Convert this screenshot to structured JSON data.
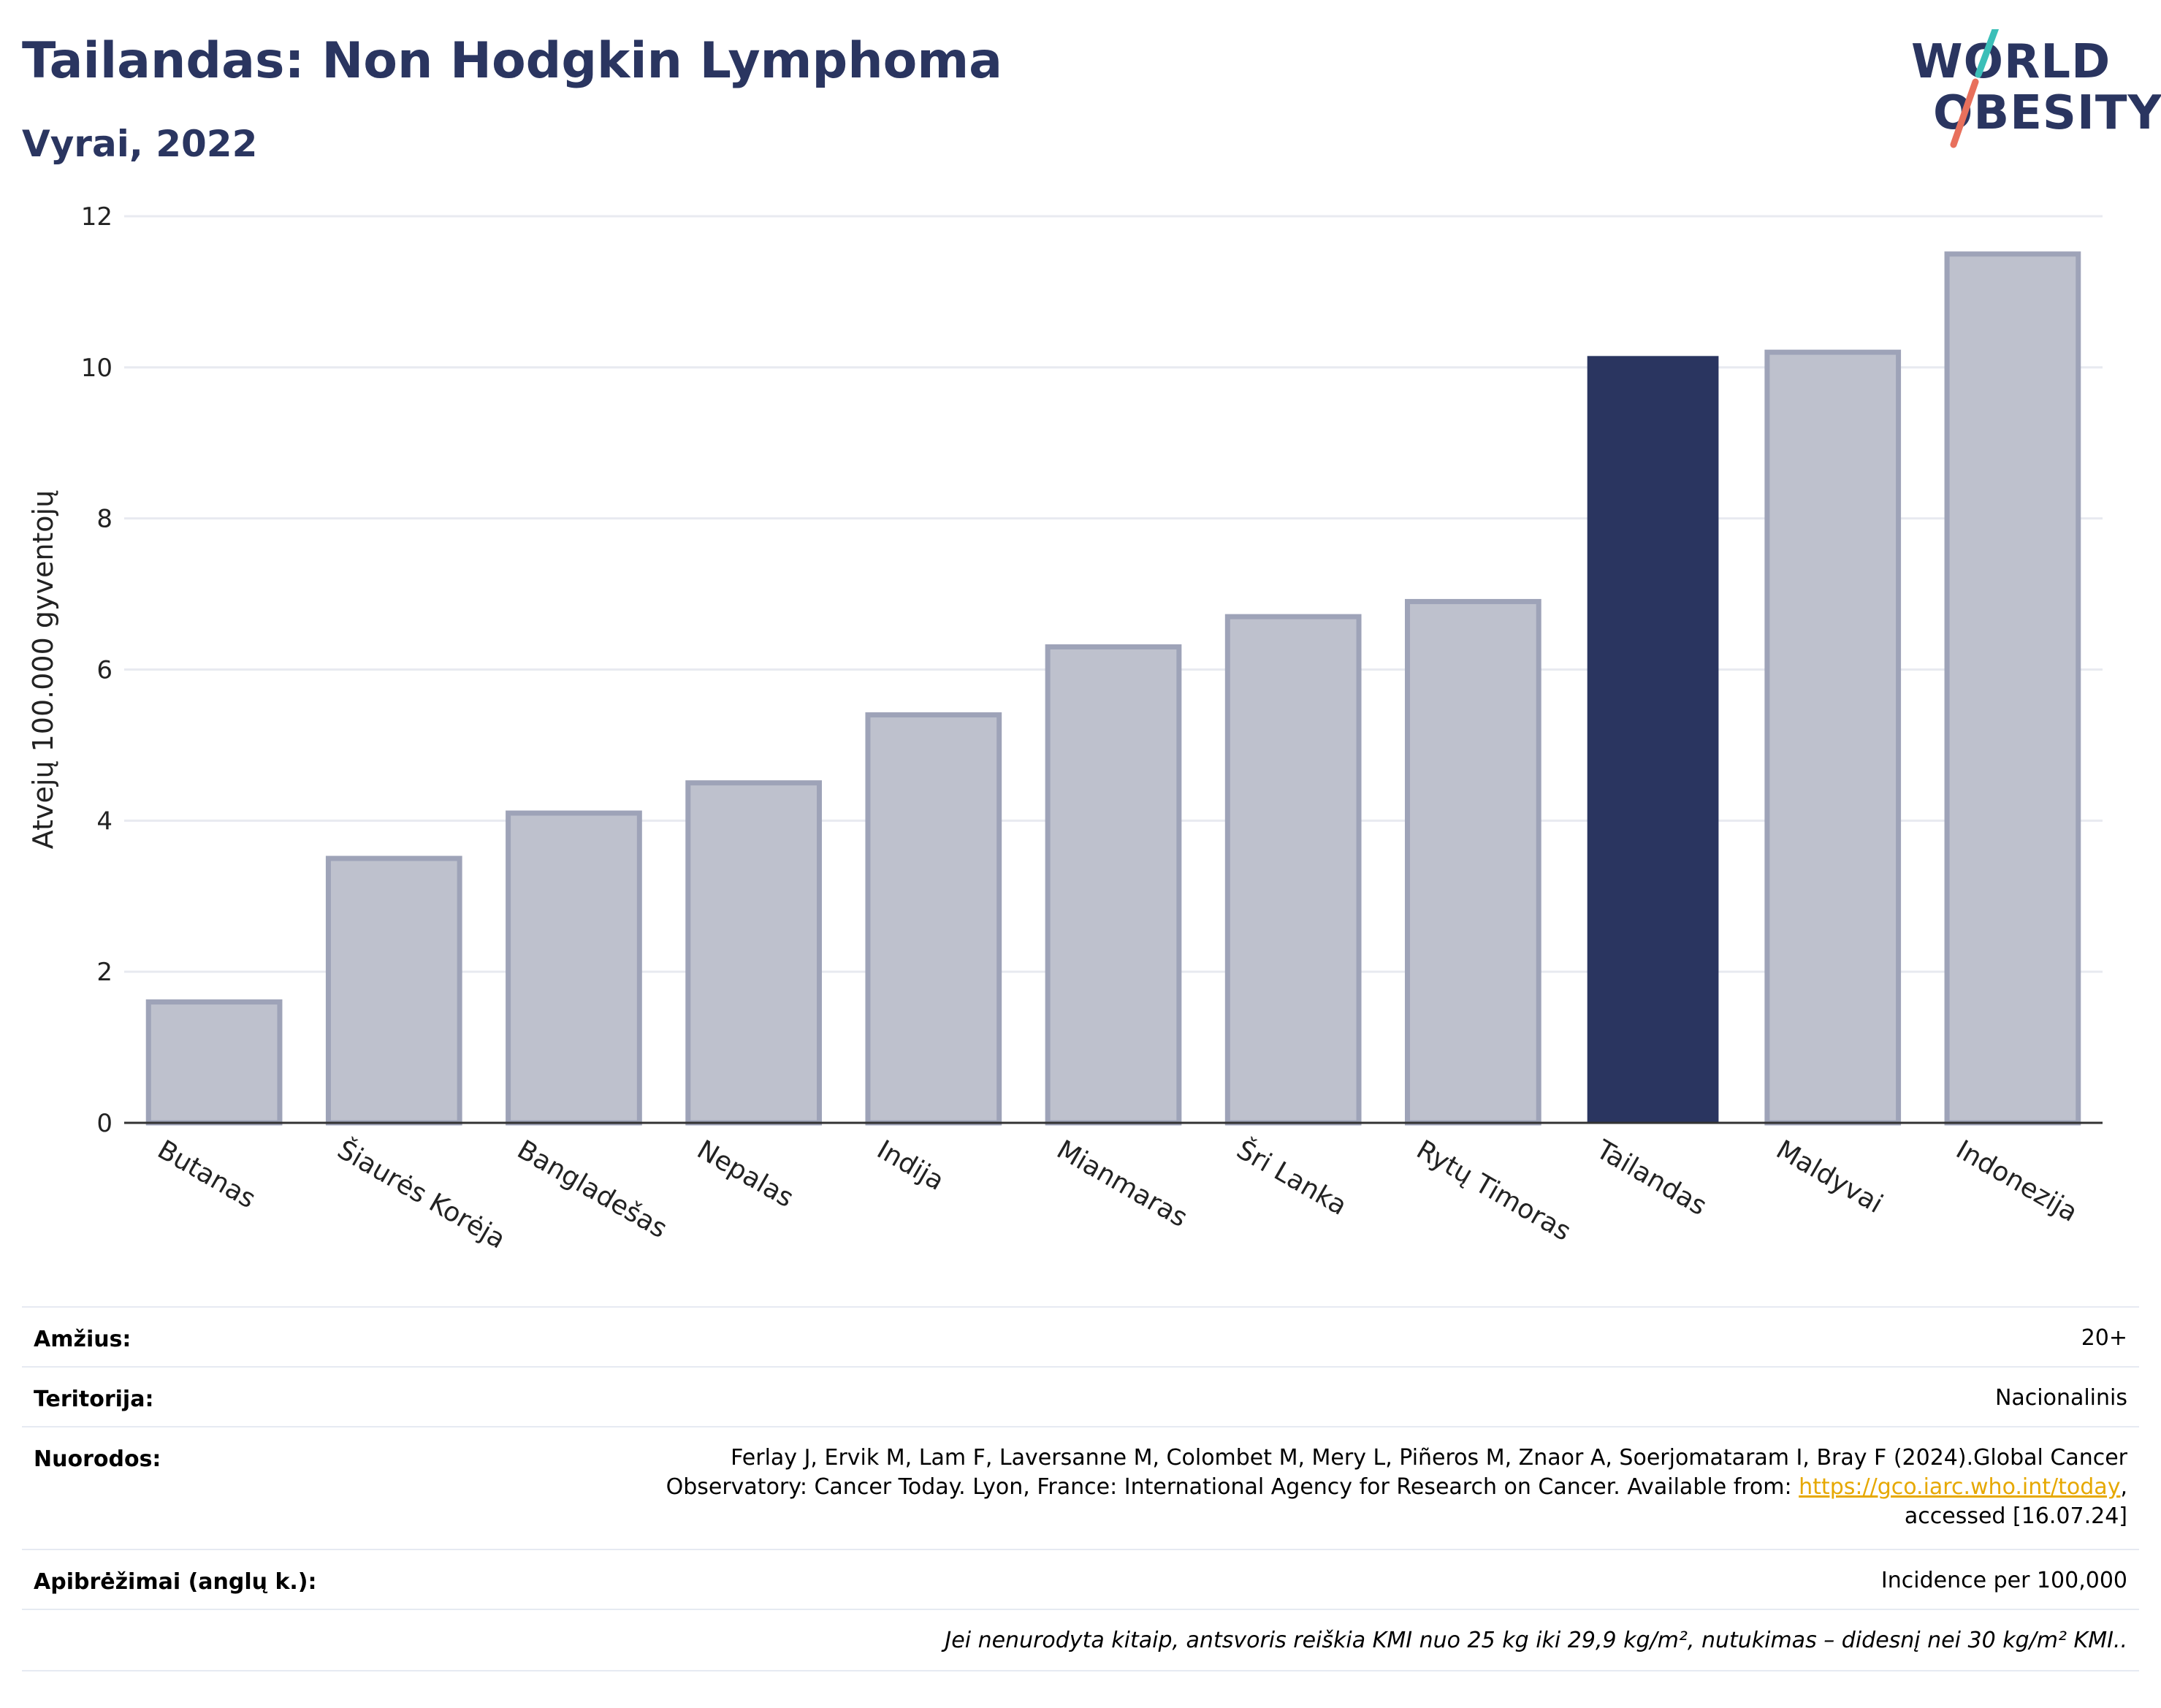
{
  "header": {
    "title": "Tailandas: Non Hodgkin Lymphoma",
    "subtitle": "Vyrai, 2022"
  },
  "logo": {
    "line1": "WORLD",
    "line2": "OBESITY",
    "colors": {
      "text": "#2a3560",
      "slash_teal": "#3bbfb8",
      "slash_red": "#e8705c"
    }
  },
  "chart_data": {
    "type": "bar",
    "ylabel": "Atvejų 100.000 gyventojų",
    "ylim": [
      0,
      12
    ],
    "yticks": [
      0,
      2,
      4,
      6,
      8,
      10,
      12
    ],
    "grid": true,
    "categories": [
      "Butanas",
      "Šiaurės Korėja",
      "Bangladešas",
      "Nepalas",
      "Indija",
      "Mianmaras",
      "Šri Lanka",
      "Rytų Timoras",
      "Tailandas",
      "Maldyvai",
      "Indonezija"
    ],
    "values": [
      1.6,
      3.5,
      4.1,
      4.5,
      5.4,
      6.3,
      6.7,
      6.9,
      10.15,
      10.2,
      11.5
    ],
    "highlight": "Tailandas",
    "colors": {
      "highlight": "#2a3560",
      "normal_fill": "#bec1cd",
      "normal_stroke": "#9ea3b8",
      "grid": "#e8eaf0",
      "axis": "#333333"
    }
  },
  "meta": {
    "age_label": "Amžius:",
    "age_value": "20+",
    "territory_label": "Teritorija:",
    "territory_value": "Nacionalinis",
    "refs_label": "Nuorodos:",
    "refs_line1": "Ferlay J, Ervik M, Lam F, Laversanne M, Colombet M, Mery L, Piñeros M, Znaor A, Soerjomataram I, Bray F (2024).Global Cancer",
    "refs_line2": "Observatory: Cancer Today. Lyon, France: International Agency for Research on Cancer. Available from: ",
    "refs_link": "https://gco.iarc.who.int/today",
    "refs_line2_end": ",",
    "refs_line3": "accessed [16.07.24]",
    "defs_label": "Apibrėžimai (anglų k.):",
    "defs_value": "Incidence per 100,000",
    "note": "Jei nenurodyta kitaip, antsvoris reiškia KMI nuo 25 kg iki 29,9 kg/m², nutukimas – didesnį nei 30 kg/m² KMI.."
  }
}
